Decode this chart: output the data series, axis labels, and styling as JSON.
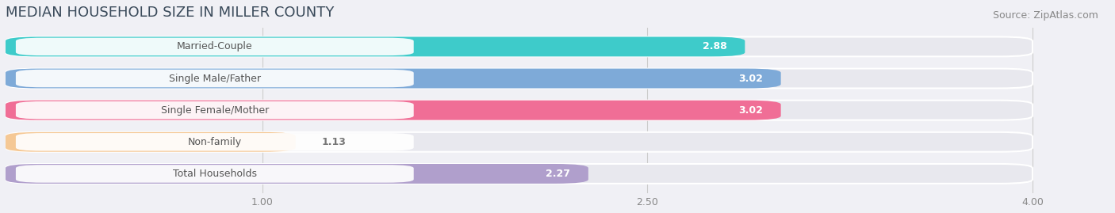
{
  "title": "MEDIAN HOUSEHOLD SIZE IN MILLER COUNTY",
  "source": "Source: ZipAtlas.com",
  "categories": [
    "Married-Couple",
    "Single Male/Father",
    "Single Female/Mother",
    "Non-family",
    "Total Households"
  ],
  "values": [
    2.88,
    3.02,
    3.02,
    1.13,
    2.27
  ],
  "bar_colors": [
    "#3ecbca",
    "#7eaad8",
    "#f06e96",
    "#f5c895",
    "#b09fcc"
  ],
  "background_color": "#f0f0f5",
  "bar_bg_color": "#e8e8ee",
  "bar_outline_color": "#ffffff",
  "xlim_min": 0.0,
  "xlim_max": 4.3,
  "xaxis_min": 0.0,
  "xaxis_max": 4.0,
  "xticks": [
    1.0,
    2.5,
    4.0
  ],
  "value_label_color_inside": "#ffffff",
  "value_label_color_outside": "#777777",
  "title_fontsize": 13,
  "source_fontsize": 9,
  "label_fontsize": 9,
  "value_fontsize": 9,
  "bar_height": 0.62,
  "label_box_color": "#ffffff",
  "label_text_color": "#555555"
}
